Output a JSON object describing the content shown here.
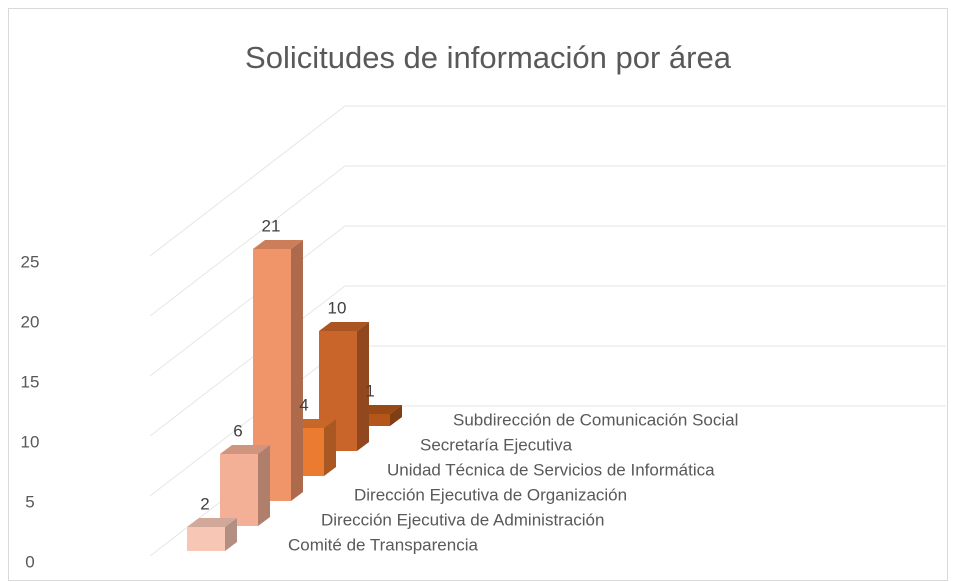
{
  "chart_data": {
    "type": "bar3d",
    "title": "Solicitudes de información por área",
    "categories": [
      "Comité de Transparencia",
      "Dirección Ejecutiva de Administración",
      "Dirección Ejecutiva de Organización",
      "Unidad Técnica de Servicios de Informática",
      "Secretaría Ejecutiva",
      "Subdirección de Comunicación Social"
    ],
    "values": [
      2,
      6,
      21,
      4,
      10,
      1
    ],
    "colors": [
      "#f7c6b5",
      "#f4b096",
      "#f0946a",
      "#ea7b30",
      "#c9642a",
      "#b4561a"
    ],
    "ylim": [
      0,
      25
    ],
    "yticks": [
      0,
      5,
      10,
      15,
      20,
      25
    ],
    "grid": true
  }
}
